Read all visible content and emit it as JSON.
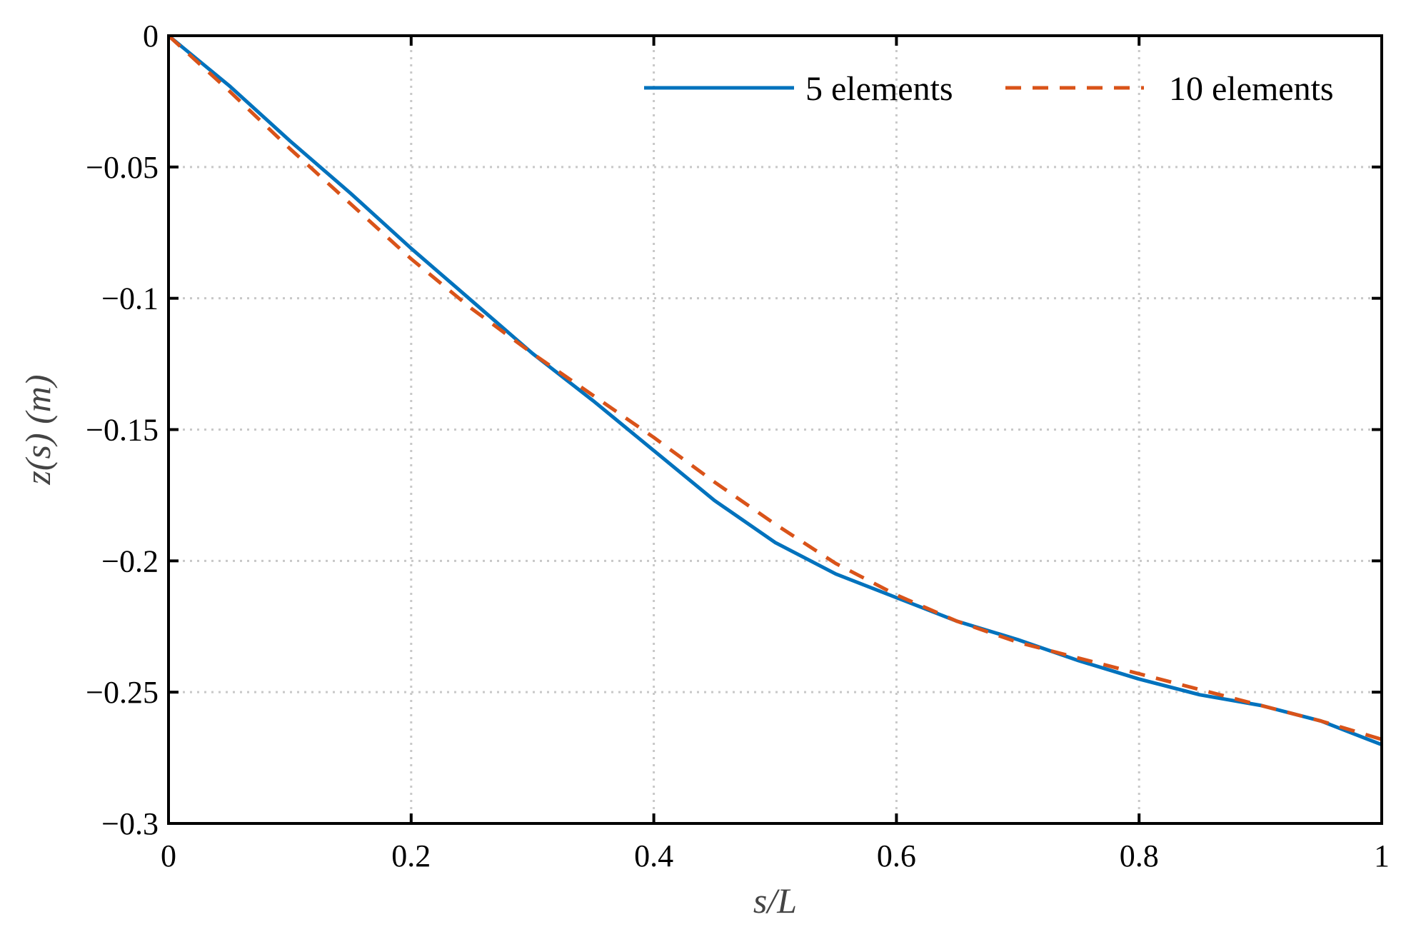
{
  "chart_data": {
    "type": "line",
    "xlabel": "s/L",
    "ylabel": "z(s) (m)",
    "xlim": [
      0,
      1
    ],
    "ylim": [
      -0.3,
      0
    ],
    "xticks": [
      0,
      0.2,
      0.4,
      0.6,
      0.8,
      1
    ],
    "xtick_labels": [
      "0",
      "0.2",
      "0.4",
      "0.6",
      "0.8",
      "1"
    ],
    "yticks": [
      0,
      -0.05,
      -0.1,
      -0.15,
      -0.2,
      -0.25,
      -0.3
    ],
    "ytick_labels": [
      "0",
      "−0.05",
      "−0.1",
      "−0.15",
      "−0.2",
      "−0.25",
      "−0.3"
    ],
    "grid": true,
    "legend_position": "top-right",
    "series": [
      {
        "name": "5 elements",
        "color": "#0072bd",
        "style": "solid",
        "x": [
          0,
          0.05,
          0.1,
          0.15,
          0.2,
          0.25,
          0.3,
          0.35,
          0.4,
          0.45,
          0.5,
          0.55,
          0.6,
          0.65,
          0.7,
          0.75,
          0.8,
          0.85,
          0.9,
          0.95,
          1.0
        ],
        "y": [
          0,
          -0.019,
          -0.04,
          -0.06,
          -0.081,
          -0.101,
          -0.121,
          -0.139,
          -0.158,
          -0.177,
          -0.193,
          -0.205,
          -0.214,
          -0.223,
          -0.23,
          -0.238,
          -0.245,
          -0.251,
          -0.255,
          -0.261,
          -0.27
        ]
      },
      {
        "name": "10 elements",
        "color": "#d95319",
        "style": "dashed",
        "x": [
          0,
          0.05,
          0.1,
          0.15,
          0.2,
          0.25,
          0.3,
          0.35,
          0.4,
          0.45,
          0.5,
          0.55,
          0.6,
          0.65,
          0.7,
          0.75,
          0.8,
          0.85,
          0.9,
          0.95,
          1.0
        ],
        "y": [
          0,
          -0.021,
          -0.043,
          -0.064,
          -0.085,
          -0.104,
          -0.121,
          -0.137,
          -0.153,
          -0.17,
          -0.186,
          -0.201,
          -0.213,
          -0.223,
          -0.231,
          -0.237,
          -0.243,
          -0.249,
          -0.255,
          -0.261,
          -0.268
        ]
      }
    ]
  }
}
